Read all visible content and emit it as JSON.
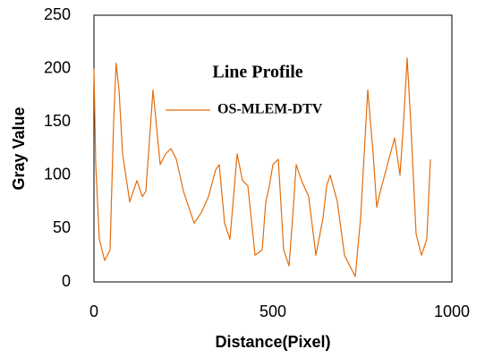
{
  "chart_data": {
    "type": "line",
    "title": "Line Profile",
    "x_label": "Distance(Pixel)",
    "y_label": "Gray Value",
    "x": [
      0,
      5,
      15,
      30,
      45,
      55,
      62,
      70,
      80,
      100,
      120,
      135,
      145,
      165,
      185,
      200,
      215,
      230,
      250,
      265,
      280,
      300,
      320,
      340,
      350,
      365,
      380,
      390,
      400,
      415,
      430,
      450,
      470,
      480,
      490,
      500,
      515,
      530,
      545,
      555,
      565,
      580,
      600,
      620,
      640,
      650,
      660,
      680,
      700,
      715,
      730,
      745,
      765,
      780,
      790,
      800,
      820,
      840,
      855,
      865,
      875,
      885,
      900,
      915,
      930,
      940
    ],
    "series": [
      {
        "name": "OS-MLEM-DTV",
        "color": "#e46c0a",
        "values": [
          200,
          110,
          40,
          20,
          30,
          150,
          205,
          180,
          120,
          75,
          95,
          80,
          85,
          180,
          110,
          120,
          125,
          115,
          85,
          70,
          55,
          65,
          80,
          105,
          110,
          55,
          40,
          80,
          120,
          95,
          90,
          25,
          30,
          75,
          90,
          110,
          115,
          30,
          15,
          60,
          110,
          95,
          80,
          25,
          60,
          90,
          100,
          75,
          25,
          15,
          5,
          60,
          180,
          120,
          70,
          85,
          110,
          135,
          100,
          150,
          210,
          150,
          45,
          25,
          40,
          115
        ]
      }
    ],
    "xlim": [
      0,
      1000
    ],
    "xticks": [
      0,
      500,
      1000
    ],
    "ylim": [
      0,
      250
    ],
    "yticks": [
      0,
      50,
      100,
      150,
      200,
      250
    ],
    "grid": false
  }
}
